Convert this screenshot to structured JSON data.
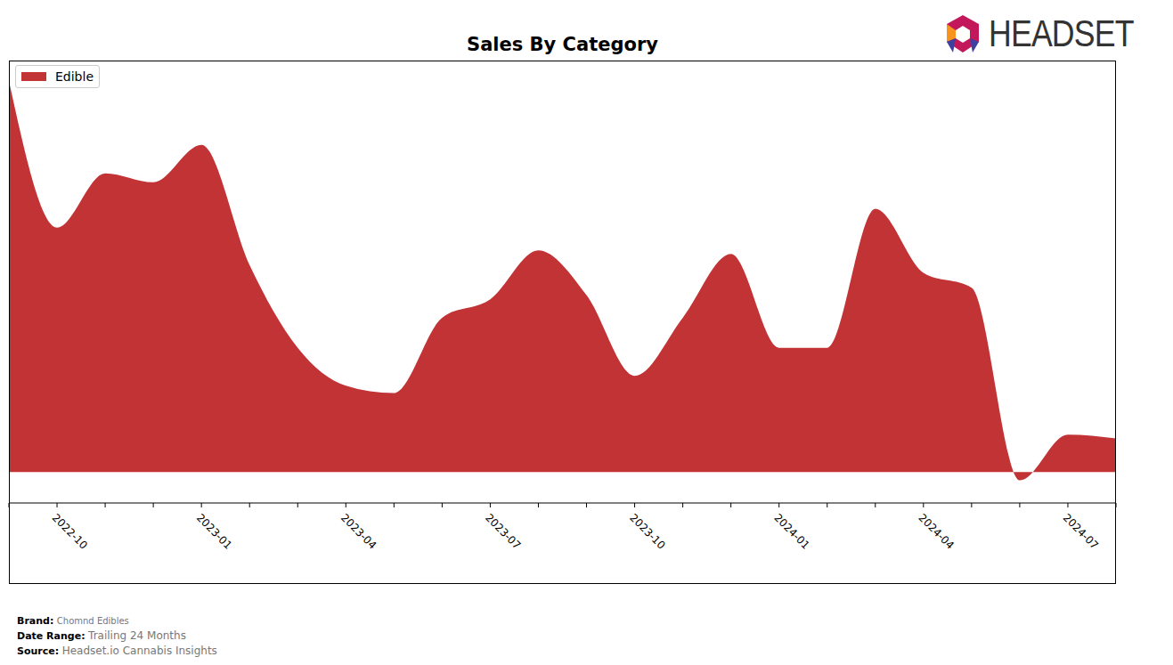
{
  "chart_data": {
    "type": "area",
    "title": "Sales By Category",
    "categories": [
      null,
      "2022-10",
      null,
      null,
      "2023-01",
      null,
      null,
      "2023-04",
      null,
      null,
      "2023-07",
      null,
      null,
      "2023-10",
      null,
      null,
      "2024-01",
      null,
      null,
      "2024-04",
      null,
      null,
      "2024-07",
      null
    ],
    "series": [
      {
        "name": "Edible",
        "color": "#c23336",
        "values": [
          95.1,
          59.4,
          72.6,
          70.4,
          79.5,
          50.3,
          30.2,
          21.0,
          19.2,
          37.5,
          42.0,
          53.9,
          43.0,
          23.4,
          37.5,
          53.0,
          30.2,
          30.2,
          64.0,
          48.4,
          44.8,
          -2.0,
          9.1,
          8.2
        ]
      }
    ],
    "ylim": [
      -7.5,
      100
    ],
    "tick_labels": "x",
    "legend": "upper left"
  },
  "logo": "HEADSET",
  "footer": [
    {
      "label": "Brand:",
      "text": "Chomnd Edibles"
    },
    {
      "label": "Date Range:",
      "text": "Trailing 24 Months"
    },
    {
      "label": "Source:",
      "text": "Headset.io Cannabis Insights"
    }
  ]
}
